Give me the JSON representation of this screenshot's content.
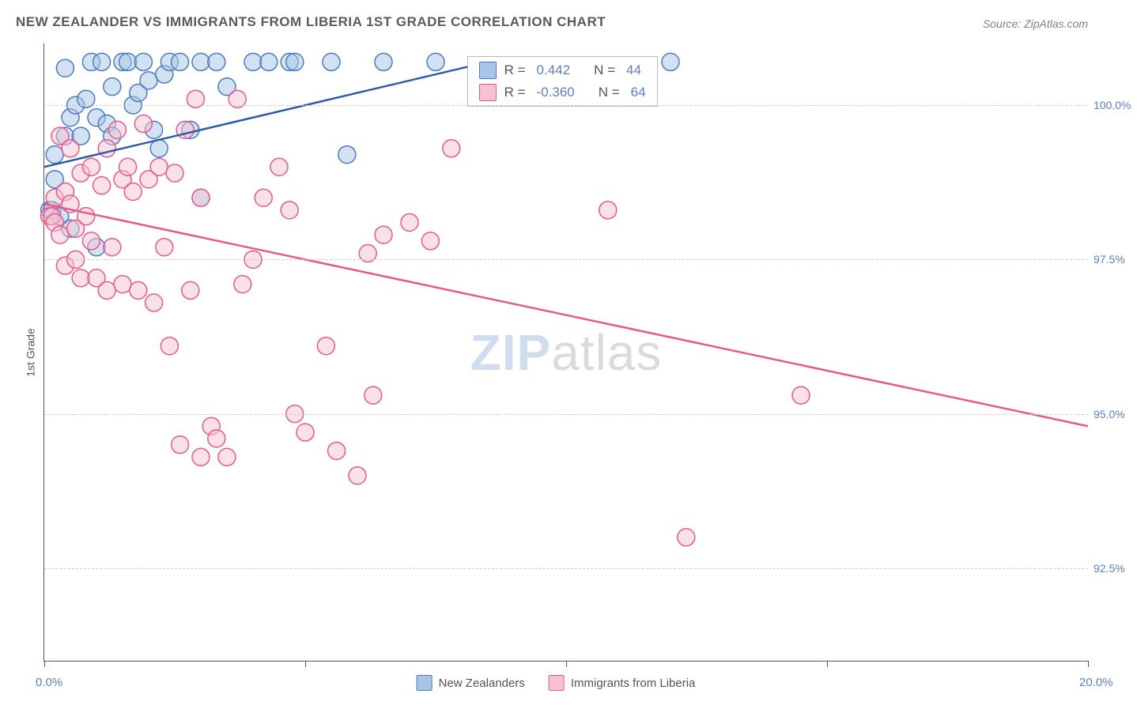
{
  "title": "NEW ZEALANDER VS IMMIGRANTS FROM LIBERIA 1ST GRADE CORRELATION CHART",
  "source": "Source: ZipAtlas.com",
  "ylabel": "1st Grade",
  "watermark_prefix": "ZIP",
  "watermark_suffix": "atlas",
  "chart": {
    "type": "scatter",
    "xlim": [
      0,
      20
    ],
    "ylim": [
      91,
      101
    ],
    "yticks": [
      92.5,
      95.0,
      97.5,
      100.0
    ],
    "ytick_labels": [
      "92.5%",
      "95.0%",
      "97.5%",
      "100.0%"
    ],
    "xtick_positions": [
      0,
      5,
      10,
      15,
      20
    ],
    "x_axis_labels": [
      {
        "pos": 0,
        "text": "0.0%"
      },
      {
        "pos": 20,
        "text": "20.0%"
      }
    ],
    "background_color": "#ffffff",
    "grid_color": "#cccccc",
    "series": [
      {
        "name": "New Zealanders",
        "color_fill": "#a8c5e8",
        "color_stroke": "#4a7bc0",
        "line_color": "#2e5da8",
        "marker_radius": 11,
        "fill_opacity": 0.5,
        "trend": {
          "x1": 0,
          "y1": 99.0,
          "x2": 8.5,
          "y2": 100.7
        },
        "points": [
          [
            0.1,
            98.3
          ],
          [
            0.15,
            98.3
          ],
          [
            0.2,
            98.8
          ],
          [
            0.2,
            99.2
          ],
          [
            0.3,
            98.2
          ],
          [
            0.4,
            99.5
          ],
          [
            0.4,
            100.6
          ],
          [
            0.5,
            99.8
          ],
          [
            0.5,
            98.0
          ],
          [
            0.6,
            100.0
          ],
          [
            0.7,
            99.5
          ],
          [
            0.8,
            100.1
          ],
          [
            0.9,
            100.7
          ],
          [
            1.0,
            99.8
          ],
          [
            1.0,
            97.7
          ],
          [
            1.1,
            100.7
          ],
          [
            1.2,
            99.7
          ],
          [
            1.3,
            100.3
          ],
          [
            1.3,
            99.5
          ],
          [
            1.5,
            100.7
          ],
          [
            1.6,
            100.7
          ],
          [
            1.7,
            100.0
          ],
          [
            1.8,
            100.2
          ],
          [
            1.9,
            100.7
          ],
          [
            2.0,
            100.4
          ],
          [
            2.1,
            99.6
          ],
          [
            2.2,
            99.3
          ],
          [
            2.3,
            100.5
          ],
          [
            2.4,
            100.7
          ],
          [
            2.6,
            100.7
          ],
          [
            2.8,
            99.6
          ],
          [
            3.0,
            98.5
          ],
          [
            3.0,
            100.7
          ],
          [
            3.3,
            100.7
          ],
          [
            3.5,
            100.3
          ],
          [
            4.0,
            100.7
          ],
          [
            4.3,
            100.7
          ],
          [
            4.7,
            100.7
          ],
          [
            4.8,
            100.7
          ],
          [
            5.5,
            100.7
          ],
          [
            5.8,
            99.2
          ],
          [
            6.5,
            100.7
          ],
          [
            7.5,
            100.7
          ],
          [
            12.0,
            100.7
          ]
        ],
        "R": "0.442",
        "N": "44"
      },
      {
        "name": "Immigrants from Liberia",
        "color_fill": "#f5c2d1",
        "color_stroke": "#e65a8a",
        "line_color": "#e65a8a",
        "marker_radius": 11,
        "fill_opacity": 0.5,
        "trend": {
          "x1": 0,
          "y1": 98.4,
          "x2": 20,
          "y2": 94.8
        },
        "points": [
          [
            0.1,
            98.2
          ],
          [
            0.15,
            98.2
          ],
          [
            0.2,
            98.1
          ],
          [
            0.2,
            98.5
          ],
          [
            0.3,
            97.9
          ],
          [
            0.3,
            99.5
          ],
          [
            0.4,
            98.6
          ],
          [
            0.4,
            97.4
          ],
          [
            0.5,
            98.4
          ],
          [
            0.5,
            99.3
          ],
          [
            0.6,
            98.0
          ],
          [
            0.6,
            97.5
          ],
          [
            0.7,
            98.9
          ],
          [
            0.7,
            97.2
          ],
          [
            0.8,
            98.2
          ],
          [
            0.9,
            97.8
          ],
          [
            0.9,
            99.0
          ],
          [
            1.0,
            97.2
          ],
          [
            1.1,
            98.7
          ],
          [
            1.2,
            97.0
          ],
          [
            1.2,
            99.3
          ],
          [
            1.3,
            97.7
          ],
          [
            1.4,
            99.6
          ],
          [
            1.5,
            98.8
          ],
          [
            1.5,
            97.1
          ],
          [
            1.6,
            99.0
          ],
          [
            1.7,
            98.6
          ],
          [
            1.8,
            97.0
          ],
          [
            1.9,
            99.7
          ],
          [
            2.0,
            98.8
          ],
          [
            2.1,
            96.8
          ],
          [
            2.2,
            99.0
          ],
          [
            2.3,
            97.7
          ],
          [
            2.4,
            96.1
          ],
          [
            2.5,
            98.9
          ],
          [
            2.6,
            94.5
          ],
          [
            2.7,
            99.6
          ],
          [
            2.8,
            97.0
          ],
          [
            2.9,
            100.1
          ],
          [
            3.0,
            98.5
          ],
          [
            3.0,
            94.3
          ],
          [
            3.2,
            94.8
          ],
          [
            3.3,
            94.6
          ],
          [
            3.5,
            94.3
          ],
          [
            3.7,
            100.1
          ],
          [
            3.8,
            97.1
          ],
          [
            4.0,
            97.5
          ],
          [
            4.2,
            98.5
          ],
          [
            4.5,
            99.0
          ],
          [
            4.7,
            98.3
          ],
          [
            4.8,
            95.0
          ],
          [
            5.0,
            94.7
          ],
          [
            5.4,
            96.1
          ],
          [
            5.6,
            94.4
          ],
          [
            6.0,
            94.0
          ],
          [
            6.2,
            97.6
          ],
          [
            6.3,
            95.3
          ],
          [
            6.5,
            97.9
          ],
          [
            7.0,
            98.1
          ],
          [
            7.4,
            97.8
          ],
          [
            7.8,
            99.3
          ],
          [
            10.8,
            98.3
          ],
          [
            12.3,
            93.0
          ],
          [
            14.5,
            95.3
          ]
        ],
        "R": "-0.360",
        "N": "64"
      }
    ],
    "legend_box": {
      "top_pct": 2,
      "left_pct": 40.5
    },
    "legend_labels": {
      "R_prefix": "R =",
      "N_prefix": "N ="
    }
  }
}
